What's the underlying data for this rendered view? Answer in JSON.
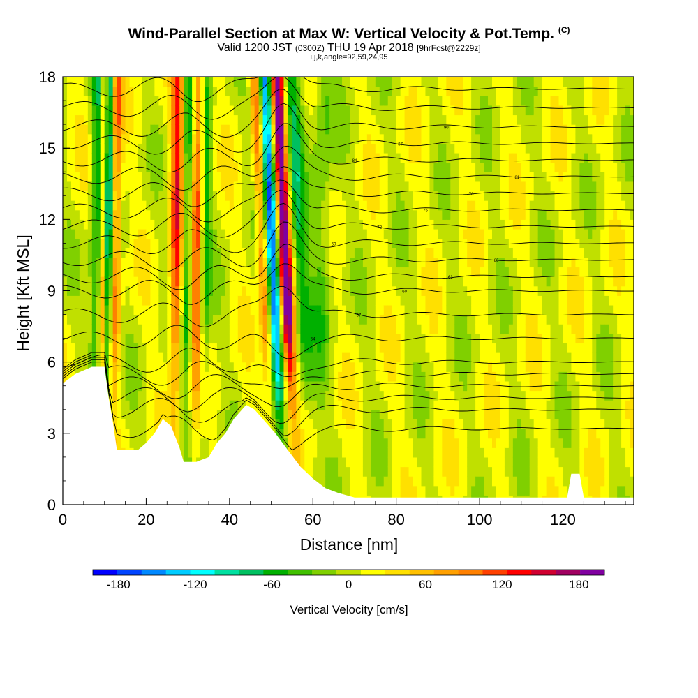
{
  "titles": {
    "main": "Wind-Parallel Section at Max W: Vertical Velocity & Pot.Temp.",
    "copyright": "(C)",
    "valid_prefix": "Valid 1200 JST",
    "valid_utc": "(0300Z)",
    "valid_date": "THU 19 Apr 2018",
    "fcst": "[9hrFcst@2229z]",
    "ijk": "i,j,k,angle=92,59,24,95"
  },
  "chart_data": {
    "type": "heatmap",
    "xlabel": "Distance [nm]",
    "ylabel": "Height [Kft MSL]",
    "xlim": [
      0,
      137
    ],
    "ylim": [
      0,
      18
    ],
    "x_ticks": [
      0,
      20,
      40,
      60,
      80,
      100,
      120
    ],
    "y_ticks": [
      0,
      3,
      6,
      9,
      12,
      15,
      18
    ],
    "colorbar": {
      "label": "Vertical Velocity [cm/s]",
      "ticks": [
        -180,
        -120,
        -60,
        0,
        60,
        120,
        180
      ],
      "range": [
        -200,
        200
      ],
      "colors": [
        "#0000ff",
        "#0044ff",
        "#0088ff",
        "#00ccff",
        "#00ffff",
        "#00e0a0",
        "#00c060",
        "#00b000",
        "#40c000",
        "#80d000",
        "#c0e000",
        "#ffff00",
        "#ffe000",
        "#ffc000",
        "#ffa000",
        "#ff8000",
        "#ff4000",
        "#ff0000",
        "#d00030",
        "#a00060",
        "#8000a0"
      ]
    },
    "terrain_kft": [
      [
        0,
        5.1
      ],
      [
        3,
        5.5
      ],
      [
        7,
        5.8
      ],
      [
        10,
        5.8
      ],
      [
        11,
        4.5
      ],
      [
        12,
        3.5
      ],
      [
        13,
        2.3
      ],
      [
        18,
        2.3
      ],
      [
        20,
        2.6
      ],
      [
        22,
        3.0
      ],
      [
        24,
        3.6
      ],
      [
        26,
        3.3
      ],
      [
        28,
        2.4
      ],
      [
        29,
        1.8
      ],
      [
        32,
        1.8
      ],
      [
        35,
        2.0
      ],
      [
        37,
        2.6
      ],
      [
        39,
        3.0
      ],
      [
        41,
        3.6
      ],
      [
        44,
        4.2
      ],
      [
        46,
        4.0
      ],
      [
        48,
        3.6
      ],
      [
        51,
        3.0
      ],
      [
        54,
        2.3
      ],
      [
        57,
        1.6
      ],
      [
        60,
        1.1
      ],
      [
        63,
        0.7
      ],
      [
        66,
        0.5
      ],
      [
        70,
        0.3
      ],
      [
        121,
        0.3
      ],
      [
        122,
        1.3
      ],
      [
        124,
        1.3
      ],
      [
        125,
        0.3
      ],
      [
        137,
        0.3
      ]
    ],
    "velocity_features": [
      {
        "x": 8,
        "w": 1.6,
        "amp": -80
      },
      {
        "x": 10.5,
        "w": 1.2,
        "amp": -120
      },
      {
        "x": 9.4,
        "w": 1.0,
        "amp": 110
      },
      {
        "x": 12.5,
        "w": 1.2,
        "amp": 90
      },
      {
        "x": 27,
        "w": 1.5,
        "amp": 120
      },
      {
        "x": 29.5,
        "w": 1.2,
        "amp": -70
      },
      {
        "x": 32,
        "w": 1.3,
        "amp": 100
      },
      {
        "x": 34,
        "w": 1.2,
        "amp": -60
      },
      {
        "x": 49,
        "w": 1.2,
        "amp": 90
      },
      {
        "x": 51.5,
        "w": 1.4,
        "amp": -180
      },
      {
        "x": 54.5,
        "w": 1.5,
        "amp": 190
      },
      {
        "x": 58,
        "w": 2.0,
        "amp": -70
      },
      {
        "x": 62,
        "w": 2.5,
        "amp": -40
      }
    ],
    "theta_contours_kft": [
      3.2,
      4.0,
      4.5,
      5.0,
      5.5,
      6.0,
      7.0,
      8.0,
      9.0,
      9.6,
      10.3,
      11.0,
      11.7,
      12.4,
      13.1,
      13.8,
      14.5,
      15.2,
      15.9,
      16.7,
      17.5
    ],
    "contour_labels": [
      "54",
      "57",
      "60",
      "63",
      "66",
      "69",
      "72",
      "75",
      "78",
      "81",
      "84",
      "87",
      "90"
    ]
  }
}
